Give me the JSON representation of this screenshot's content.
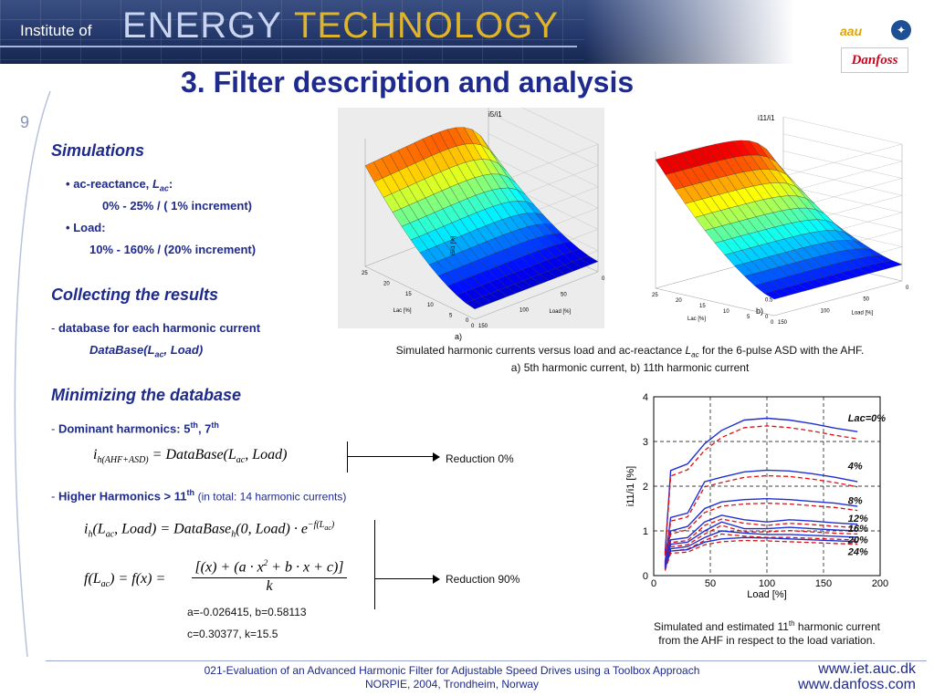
{
  "header": {
    "institute": "Institute of",
    "energy": "ENERGY",
    "technology": "TECHNOLOGY",
    "logo_aau": "aau",
    "logo_danfoss": "Danfoss"
  },
  "slide": {
    "title": "3. Filter description and analysis",
    "number": "9"
  },
  "simulations": {
    "heading": "Simulations",
    "bullet1_label": "ac-reactance,",
    "bullet1_symbol": "L",
    "bullet1_sub": "ac",
    "bullet1_colon": ":",
    "bullet1_value": "0% -  25% / ( 1% increment)",
    "bullet2_label": "Load:",
    "bullet2_value": "10% - 160% / (20% increment)"
  },
  "collecting": {
    "heading": "Collecting the results",
    "dash": "-",
    "item": "database for each harmonic current",
    "db_pre": "DataBase(L",
    "db_sub": "ac",
    "db_post": ", Load)"
  },
  "minimizing": {
    "heading": "Minimizing the database",
    "dominant_pre": "Dominant harmonics: 5",
    "dominant_sup1": "th",
    "dominant_mid": ", 7",
    "dominant_sup2": "th",
    "higher_pre": "Higher Harmonics > 11",
    "higher_sup": "th",
    "higher_note": "(in total: 14 harmonic currents)",
    "reduction1": "Reduction 0%",
    "reduction2": "Reduction 90%",
    "coef_line1": "a=-0.026415,  b=0.58113",
    "coef_line2": "c=0.30377,  k=15.5"
  },
  "figure3d": {
    "left_title": "i5/i1",
    "right_title": "i11/i1",
    "left_label": "a)",
    "right_label": "b)",
    "left_zticks": [
      "0",
      "2",
      "4",
      "6",
      "8",
      "10",
      "12"
    ],
    "left_zlabel": "i5/i1 [%]",
    "right_zticks": [
      "0",
      "0.5",
      "1",
      "1.5",
      "2",
      "2.5",
      "3",
      "3.5",
      "4"
    ],
    "lac_ticks": [
      "0",
      "5",
      "10",
      "15",
      "20",
      "25"
    ],
    "load_ticks": [
      "0",
      "50",
      "100",
      "150"
    ],
    "lac_label": "Lac [%]",
    "load_label": "Load [%]",
    "caption_line1_pre": "Simulated harmonic currents versus load and ac-reactance",
    "caption_line1_sym": "L",
    "caption_line1_sub": "ac",
    "caption_line1_post": "for the 6-pulse ASD with the AHF.",
    "caption_line2": "a) 5th harmonic current, b) 11th harmonic current"
  },
  "chart_data": {
    "type": "line",
    "x": [
      10,
      15,
      30,
      45,
      60,
      80,
      100,
      120,
      140,
      160,
      180
    ],
    "xlabel": "Load [%]",
    "ylabel": "i11/i1 [%]",
    "xlim": [
      0,
      200
    ],
    "ylim": [
      0,
      4
    ],
    "xticks": [
      "0",
      "50",
      "100",
      "150",
      "200"
    ],
    "yticks": [
      "0",
      "1",
      "2",
      "3",
      "4"
    ],
    "grid": "dashed",
    "series": [
      {
        "name": "Lac=0%",
        "values": [
          0.5,
          2.35,
          2.5,
          2.95,
          3.25,
          3.48,
          3.52,
          3.48,
          3.4,
          3.3,
          3.22
        ]
      },
      {
        "name": "4%",
        "values": [
          0.3,
          1.3,
          1.4,
          2.1,
          2.2,
          2.32,
          2.36,
          2.34,
          2.28,
          2.2,
          2.1
        ]
      },
      {
        "name": "8%",
        "values": [
          0.25,
          1.0,
          1.1,
          1.5,
          1.65,
          1.7,
          1.72,
          1.7,
          1.66,
          1.62,
          1.55
        ]
      },
      {
        "name": "12%",
        "values": [
          0.2,
          0.8,
          0.85,
          1.2,
          1.35,
          1.25,
          1.2,
          1.25,
          1.22,
          1.18,
          1.15
        ]
      },
      {
        "name": "16%",
        "values": [
          0.2,
          0.7,
          0.75,
          1.0,
          1.2,
          1.05,
          1.05,
          1.08,
          1.05,
          1.02,
          1.0
        ]
      },
      {
        "name": "20%",
        "values": [
          0.15,
          0.6,
          0.65,
          0.85,
          1.0,
          0.95,
          0.92,
          0.92,
          0.9,
          0.88,
          0.86
        ]
      },
      {
        "name": "24%",
        "values": [
          0.15,
          0.55,
          0.58,
          0.75,
          0.82,
          0.85,
          0.84,
          0.82,
          0.8,
          0.78,
          0.76
        ]
      }
    ],
    "legend_labels": [
      {
        "text": "Lac=0%",
        "x": 170,
        "y": 3.45
      },
      {
        "text": "4%",
        "x": 170,
        "y": 2.38
      },
      {
        "text": "8%",
        "x": 170,
        "y": 1.6
      },
      {
        "text": "12%",
        "x": 170,
        "y": 1.2
      },
      {
        "text": "16%",
        "x": 170,
        "y": 0.98
      },
      {
        "text": "20%",
        "x": 170,
        "y": 0.72
      },
      {
        "text": "24%",
        "x": 170,
        "y": 0.46
      }
    ],
    "caption_line1_pre": "Simulated and estimated 11",
    "caption_line1_sup": "th",
    "caption_line1_post": " harmonic current",
    "caption_line2": "from the AHF in respect to the load variation."
  },
  "footer": {
    "line1": "021-Evaluation of an Advanced Harmonic Filter for Adjustable Speed Drives using a Toolbox Approach",
    "line2": "NORPIE, 2004, Trondheim, Norway",
    "url1": "www.iet.auc.dk",
    "url2": "www.danfoss.com"
  },
  "colors": {
    "title": "#1e2a8c",
    "technology": "#e0b42a",
    "simulated_line": "#1f2fd6",
    "estimated_line": "#e01010"
  }
}
